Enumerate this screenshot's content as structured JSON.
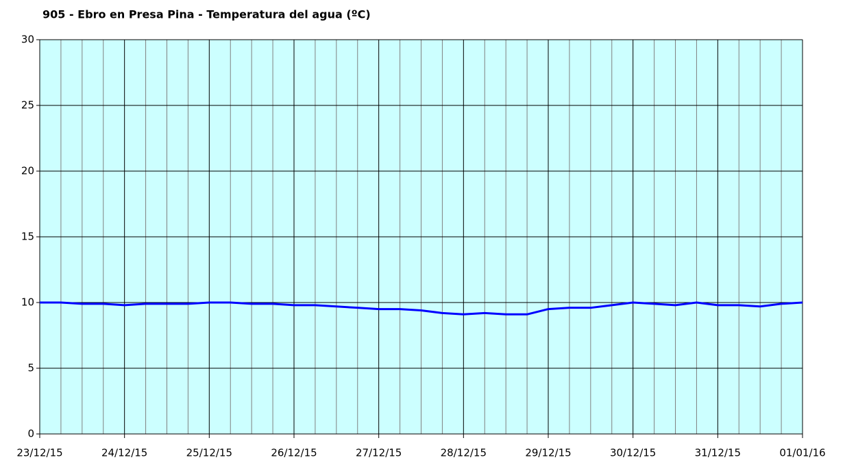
{
  "chart_data": {
    "type": "line",
    "title": "905 - Ebro en Presa Pina - Temperatura del agua (ºC)",
    "x": [
      0,
      0.25,
      0.5,
      0.75,
      1,
      1.25,
      1.5,
      1.75,
      2,
      2.25,
      2.5,
      2.75,
      3,
      3.25,
      3.5,
      3.75,
      4,
      4.25,
      4.5,
      4.75,
      5,
      5.25,
      5.5,
      5.75,
      6,
      6.25,
      6.5,
      6.75,
      7,
      7.25,
      7.5,
      7.75,
      8,
      8.25,
      8.5,
      8.75,
      9
    ],
    "series": [
      {
        "name": "Temperatura del agua",
        "color": "#0000ff",
        "values": [
          10.0,
          10.0,
          9.9,
          9.9,
          9.8,
          9.9,
          9.9,
          9.9,
          10.0,
          10.0,
          9.9,
          9.9,
          9.8,
          9.8,
          9.7,
          9.6,
          9.5,
          9.5,
          9.4,
          9.2,
          9.1,
          9.2,
          9.1,
          9.1,
          9.5,
          9.6,
          9.6,
          9.8,
          10.0,
          9.9,
          9.8,
          10.0,
          9.8,
          9.8,
          9.7,
          9.9,
          10.0
        ]
      }
    ],
    "xlim": [
      0,
      9
    ],
    "xticks": [
      {
        "value": 0,
        "label": "23/12/15"
      },
      {
        "value": 1,
        "label": "24/12/15"
      },
      {
        "value": 2,
        "label": "25/12/15"
      },
      {
        "value": 3,
        "label": "26/12/15"
      },
      {
        "value": 4,
        "label": "27/12/15"
      },
      {
        "value": 5,
        "label": "28/12/15"
      },
      {
        "value": 6,
        "label": "29/12/15"
      },
      {
        "value": 7,
        "label": "30/12/15"
      },
      {
        "value": 8,
        "label": "31/12/15"
      },
      {
        "value": 9,
        "label": "01/01/16"
      }
    ],
    "ylim": [
      0,
      30
    ],
    "yticks": [
      0,
      5,
      10,
      15,
      20,
      25,
      30
    ],
    "grid": true,
    "background": "#ccffff"
  }
}
